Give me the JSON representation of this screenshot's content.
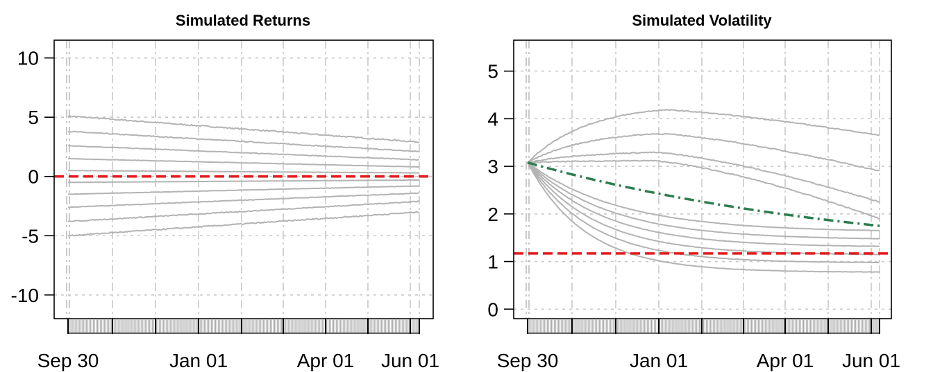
{
  "chart_data": [
    {
      "type": "line",
      "title": "Simulated Returns",
      "xlabel": "",
      "ylabel": "",
      "ylim": [
        -12,
        11.5
      ],
      "y_ticks": [
        -10,
        -5,
        0,
        5,
        10
      ],
      "y_tick_labels": [
        "-10",
        "-5",
        "0",
        "5",
        "10"
      ],
      "x_tick_labels": [
        "Sep 30",
        "Jan 01",
        "Apr 01",
        "Jun 01"
      ],
      "grid": true,
      "reference_line": {
        "value": 0,
        "color": "#e41a1c",
        "style": "dashed"
      },
      "series_color": "#b3b3b3",
      "quantile_paths": [
        {
          "start": 5.1,
          "end": 2.9
        },
        {
          "start": 3.8,
          "end": 2.1
        },
        {
          "start": 2.6,
          "end": 1.4
        },
        {
          "start": 1.5,
          "end": 0.8
        },
        {
          "start": 0.5,
          "end": 0.3
        },
        {
          "start": -0.5,
          "end": -0.3
        },
        {
          "start": -1.5,
          "end": -0.8
        },
        {
          "start": -2.6,
          "end": -1.4
        },
        {
          "start": -3.8,
          "end": -2.1
        },
        {
          "start": -5.0,
          "end": -3.0
        }
      ]
    },
    {
      "type": "line",
      "title": "Simulated Volatility",
      "xlabel": "",
      "ylabel": "",
      "ylim": [
        -0.2,
        5.65
      ],
      "y_ticks": [
        0,
        1,
        2,
        3,
        4,
        5
      ],
      "y_tick_labels": [
        "0",
        "1",
        "2",
        "3",
        "4",
        "5"
      ],
      "x_tick_labels": [
        "Sep 30",
        "Jan 01",
        "Apr 01",
        "Jun 01"
      ],
      "grid": true,
      "reference_line": {
        "value": 1.17,
        "color": "#e41a1c",
        "style": "dashed"
      },
      "mean_path": {
        "color": "#2e7d4f",
        "style": "dot-dash",
        "start": 3.08,
        "end": 1.75
      },
      "series_color": "#b3b3b3",
      "quantile_paths": [
        {
          "start": 3.08,
          "peak": 4.2,
          "end": 3.65
        },
        {
          "start": 3.08,
          "peak": 3.7,
          "end": 2.9
        },
        {
          "start": 3.08,
          "peak": 3.3,
          "end": 2.25
        },
        {
          "start": 3.08,
          "peak": 3.12,
          "end": 1.9
        },
        {
          "start": 3.08,
          "end": 1.65
        },
        {
          "start": 3.08,
          "end": 1.48
        },
        {
          "start": 3.08,
          "end": 1.32
        },
        {
          "start": 3.08,
          "end": 1.15
        },
        {
          "start": 3.08,
          "end": 0.98
        },
        {
          "start": 3.08,
          "end": 0.78
        }
      ]
    }
  ]
}
